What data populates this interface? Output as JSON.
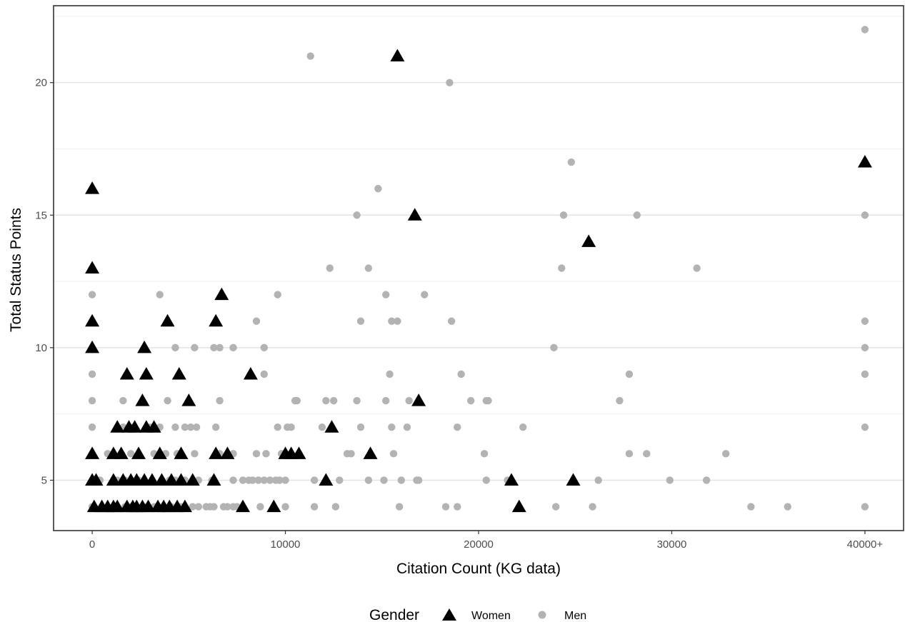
{
  "chart_data": {
    "type": "scatter",
    "title": "",
    "xlabel": "Citation Count (KG data)",
    "ylabel": "Total Status Points",
    "xlim": [
      -2000,
      42000
    ],
    "ylim": [
      3.1,
      22.9
    ],
    "x_ticks": [
      0,
      10000,
      20000,
      30000,
      40000
    ],
    "x_tick_labels": [
      "0",
      "10000",
      "20000",
      "30000",
      "40000+"
    ],
    "y_ticks": [
      5,
      10,
      15,
      20
    ],
    "y_tick_labels": [
      "5",
      "10",
      "15",
      "20"
    ],
    "grid": true,
    "legend": {
      "title": "Gender",
      "position": "bottom",
      "entries": [
        {
          "label": "Women",
          "shape": "triangle",
          "color": "#000000"
        },
        {
          "label": "Men",
          "shape": "circle",
          "color": "#b3b3b3"
        }
      ]
    },
    "series": [
      {
        "name": "Women",
        "marker": "triangle",
        "color": "#000000",
        "points": [
          [
            15800,
            21
          ],
          [
            40000,
            17
          ],
          [
            0,
            16
          ],
          [
            16700,
            15
          ],
          [
            25700,
            14
          ],
          [
            0,
            13
          ],
          [
            6700,
            12
          ],
          [
            0,
            11
          ],
          [
            3900,
            11
          ],
          [
            6400,
            11
          ],
          [
            0,
            10
          ],
          [
            2700,
            10
          ],
          [
            1800,
            9
          ],
          [
            2800,
            9
          ],
          [
            4500,
            9
          ],
          [
            8200,
            9
          ],
          [
            2600,
            8
          ],
          [
            5000,
            8
          ],
          [
            16900,
            8
          ],
          [
            1300,
            7
          ],
          [
            1900,
            7
          ],
          [
            2200,
            7
          ],
          [
            2800,
            7
          ],
          [
            3200,
            7
          ],
          [
            12400,
            7
          ],
          [
            0,
            6
          ],
          [
            1100,
            6
          ],
          [
            1500,
            6
          ],
          [
            2400,
            6
          ],
          [
            3500,
            6
          ],
          [
            4600,
            6
          ],
          [
            6400,
            6
          ],
          [
            7000,
            6
          ],
          [
            10000,
            6
          ],
          [
            10300,
            6
          ],
          [
            10700,
            6
          ],
          [
            14400,
            6
          ],
          [
            0,
            5
          ],
          [
            200,
            5
          ],
          [
            1100,
            5
          ],
          [
            1600,
            5
          ],
          [
            2000,
            5
          ],
          [
            2300,
            5
          ],
          [
            2700,
            5
          ],
          [
            3100,
            5
          ],
          [
            3600,
            5
          ],
          [
            4100,
            5
          ],
          [
            4600,
            5
          ],
          [
            5200,
            5
          ],
          [
            6300,
            5
          ],
          [
            12100,
            5
          ],
          [
            21700,
            5
          ],
          [
            24900,
            5
          ],
          [
            100,
            4
          ],
          [
            500,
            4
          ],
          [
            800,
            4
          ],
          [
            1100,
            4
          ],
          [
            1300,
            4
          ],
          [
            1800,
            4
          ],
          [
            2100,
            4
          ],
          [
            2300,
            4
          ],
          [
            2600,
            4
          ],
          [
            2900,
            4
          ],
          [
            3400,
            4
          ],
          [
            3700,
            4
          ],
          [
            4000,
            4
          ],
          [
            4400,
            4
          ],
          [
            4800,
            4
          ],
          [
            7800,
            4
          ],
          [
            9400,
            4
          ],
          [
            22100,
            4
          ]
        ]
      },
      {
        "name": "Men",
        "marker": "circle",
        "color": "#b3b3b3",
        "points": [
          [
            40000,
            22
          ],
          [
            11300,
            21
          ],
          [
            18500,
            20
          ],
          [
            24800,
            17
          ],
          [
            40000,
            17
          ],
          [
            14800,
            16
          ],
          [
            13700,
            15
          ],
          [
            24400,
            15
          ],
          [
            28200,
            15
          ],
          [
            40000,
            15
          ],
          [
            12300,
            13
          ],
          [
            14300,
            13
          ],
          [
            24300,
            13
          ],
          [
            31300,
            13
          ],
          [
            0,
            12
          ],
          [
            3500,
            12
          ],
          [
            9600,
            12
          ],
          [
            15200,
            12
          ],
          [
            17200,
            12
          ],
          [
            0,
            11
          ],
          [
            8500,
            11
          ],
          [
            13900,
            11
          ],
          [
            15500,
            11
          ],
          [
            15800,
            11
          ],
          [
            18600,
            11
          ],
          [
            40000,
            11
          ],
          [
            4300,
            10
          ],
          [
            5300,
            10
          ],
          [
            6300,
            10
          ],
          [
            6600,
            10
          ],
          [
            7300,
            10
          ],
          [
            8900,
            10
          ],
          [
            23900,
            10
          ],
          [
            40000,
            10
          ],
          [
            0,
            9
          ],
          [
            8900,
            9
          ],
          [
            15400,
            9
          ],
          [
            19100,
            9
          ],
          [
            27800,
            9
          ],
          [
            40000,
            9
          ],
          [
            0,
            8
          ],
          [
            1600,
            8
          ],
          [
            3900,
            8
          ],
          [
            6600,
            8
          ],
          [
            10500,
            8
          ],
          [
            10600,
            8
          ],
          [
            12100,
            8
          ],
          [
            12500,
            8
          ],
          [
            13700,
            8
          ],
          [
            15200,
            8
          ],
          [
            16400,
            8
          ],
          [
            19600,
            8
          ],
          [
            20400,
            8
          ],
          [
            20500,
            8
          ],
          [
            27300,
            8
          ],
          [
            0,
            7
          ],
          [
            1600,
            7
          ],
          [
            2100,
            7
          ],
          [
            3000,
            7
          ],
          [
            3500,
            7
          ],
          [
            4300,
            7
          ],
          [
            4800,
            7
          ],
          [
            5100,
            7
          ],
          [
            5400,
            7
          ],
          [
            6400,
            7
          ],
          [
            9600,
            7
          ],
          [
            10100,
            7
          ],
          [
            10300,
            7
          ],
          [
            11900,
            7
          ],
          [
            13900,
            7
          ],
          [
            15500,
            7
          ],
          [
            16300,
            7
          ],
          [
            18900,
            7
          ],
          [
            22300,
            7
          ],
          [
            40000,
            7
          ],
          [
            800,
            6
          ],
          [
            1500,
            6
          ],
          [
            2000,
            6
          ],
          [
            3200,
            6
          ],
          [
            3800,
            6
          ],
          [
            4400,
            6
          ],
          [
            5300,
            6
          ],
          [
            6600,
            6
          ],
          [
            7300,
            6
          ],
          [
            8500,
            6
          ],
          [
            9000,
            6
          ],
          [
            9800,
            6
          ],
          [
            13200,
            6
          ],
          [
            13400,
            6
          ],
          [
            15600,
            6
          ],
          [
            20300,
            6
          ],
          [
            27800,
            6
          ],
          [
            28700,
            6
          ],
          [
            32800,
            6
          ],
          [
            100,
            5
          ],
          [
            400,
            5
          ],
          [
            1300,
            5
          ],
          [
            1700,
            5
          ],
          [
            2400,
            5
          ],
          [
            3600,
            5
          ],
          [
            4000,
            5
          ],
          [
            4300,
            5
          ],
          [
            4800,
            5
          ],
          [
            5500,
            5
          ],
          [
            6200,
            5
          ],
          [
            7300,
            5
          ],
          [
            7800,
            5
          ],
          [
            8100,
            5
          ],
          [
            8300,
            5
          ],
          [
            8600,
            5
          ],
          [
            8900,
            5
          ],
          [
            9200,
            5
          ],
          [
            9500,
            5
          ],
          [
            9700,
            5
          ],
          [
            10000,
            5
          ],
          [
            11500,
            5
          ],
          [
            12800,
            5
          ],
          [
            14300,
            5
          ],
          [
            15100,
            5
          ],
          [
            16000,
            5
          ],
          [
            16800,
            5
          ],
          [
            16900,
            5
          ],
          [
            20400,
            5
          ],
          [
            21500,
            5
          ],
          [
            26200,
            5
          ],
          [
            29900,
            5
          ],
          [
            31800,
            5
          ],
          [
            0,
            4
          ],
          [
            1700,
            4
          ],
          [
            2000,
            4
          ],
          [
            2800,
            4
          ],
          [
            3200,
            4
          ],
          [
            4100,
            4
          ],
          [
            4600,
            4
          ],
          [
            5200,
            4
          ],
          [
            5500,
            4
          ],
          [
            5900,
            4
          ],
          [
            6100,
            4
          ],
          [
            6300,
            4
          ],
          [
            6800,
            4
          ],
          [
            7000,
            4
          ],
          [
            7300,
            4
          ],
          [
            7500,
            4
          ],
          [
            8700,
            4
          ],
          [
            10000,
            4
          ],
          [
            11500,
            4
          ],
          [
            12600,
            4
          ],
          [
            15900,
            4
          ],
          [
            18300,
            4
          ],
          [
            18900,
            4
          ],
          [
            24000,
            4
          ],
          [
            25900,
            4
          ],
          [
            34100,
            4
          ],
          [
            36000,
            4
          ],
          [
            40000,
            4
          ]
        ]
      }
    ]
  }
}
